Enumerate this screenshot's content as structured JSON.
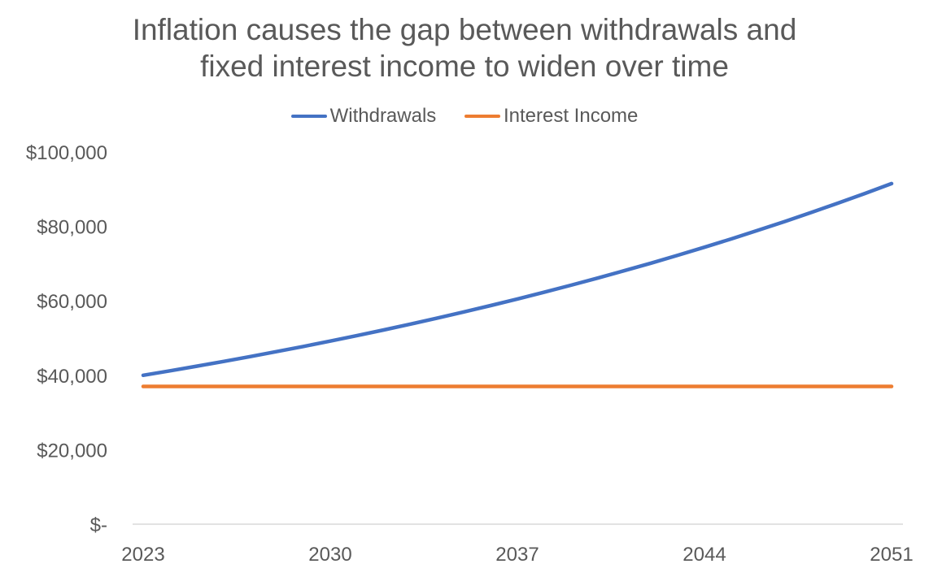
{
  "title_lines": [
    "Inflation causes the gap between withdrawals and",
    "fixed interest income to widen over time"
  ],
  "legend": [
    {
      "label": "Withdrawals",
      "color": "#4472C4"
    },
    {
      "label": "Interest Income",
      "color": "#ED7D31"
    }
  ],
  "chart_data": {
    "type": "line",
    "title": "Inflation causes the gap between withdrawals and fixed interest income to widen over time",
    "xlabel": "",
    "ylabel": "",
    "x": [
      2023,
      2024,
      2025,
      2026,
      2027,
      2028,
      2029,
      2030,
      2031,
      2032,
      2033,
      2034,
      2035,
      2036,
      2037,
      2038,
      2039,
      2040,
      2041,
      2042,
      2043,
      2044,
      2045,
      2046,
      2047,
      2048,
      2049,
      2050,
      2051
    ],
    "x_ticks": [
      "2023",
      "2030",
      "2037",
      "2044",
      "2051"
    ],
    "y_ticks": [
      {
        "value": 0,
        "label": "$-"
      },
      {
        "value": 20000,
        "label": "$20,000"
      },
      {
        "value": 40000,
        "label": "$40,000"
      },
      {
        "value": 60000,
        "label": "$60,000"
      },
      {
        "value": 80000,
        "label": "$80,000"
      },
      {
        "value": 100000,
        "label": "$100,000"
      }
    ],
    "ylim": [
      0,
      100000
    ],
    "grid": false,
    "legend_position": "top",
    "series": [
      {
        "name": "Withdrawals",
        "color": "#4472C4",
        "values": [
          40000,
          41200,
          42436,
          43709,
          45020,
          46371,
          47762,
          49195,
          50671,
          52191,
          53757,
          55369,
          57030,
          58741,
          60504,
          62319,
          64188,
          66114,
          68097,
          70140,
          72245,
          74412,
          76644,
          78944,
          81312,
          83751,
          86264,
          88852,
          91517
        ]
      },
      {
        "name": "Interest Income",
        "color": "#ED7D31",
        "values": [
          37000,
          37000,
          37000,
          37000,
          37000,
          37000,
          37000,
          37000,
          37000,
          37000,
          37000,
          37000,
          37000,
          37000,
          37000,
          37000,
          37000,
          37000,
          37000,
          37000,
          37000,
          37000,
          37000,
          37000,
          37000,
          37000,
          37000,
          37000,
          37000
        ]
      }
    ]
  }
}
